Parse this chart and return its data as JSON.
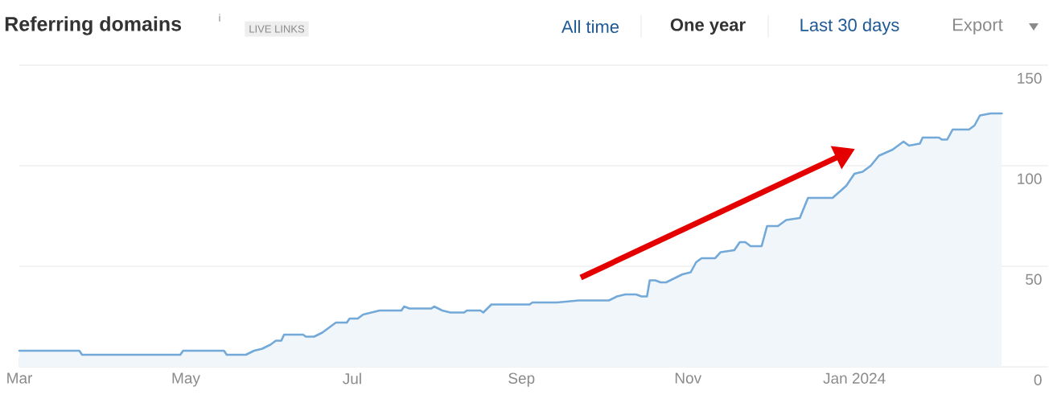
{
  "chart_data": {
    "type": "area",
    "title": "Referring domains",
    "annotations": [
      "i",
      "LIVE LINKS",
      "All time",
      "One year",
      "Last 30 days",
      "Export"
    ],
    "x": [
      "2023-03-01",
      "2023-03-23",
      "2023-03-24",
      "2023-04-29",
      "2023-04-30",
      "2023-05-15",
      "2023-05-16",
      "2023-05-23",
      "2023-05-26",
      "2023-05-29",
      "2023-06-01",
      "2023-06-03",
      "2023-06-05",
      "2023-06-06",
      "2023-06-13",
      "2023-06-14",
      "2023-06-17",
      "2023-06-20",
      "2023-06-22",
      "2023-06-25",
      "2023-06-29",
      "2023-06-30",
      "2023-07-03",
      "2023-07-05",
      "2023-07-11",
      "2023-07-19",
      "2023-07-20",
      "2023-07-22",
      "2023-07-30",
      "2023-07-31",
      "2023-08-03",
      "2023-08-06",
      "2023-08-11",
      "2023-08-12",
      "2023-08-17",
      "2023-08-18",
      "2023-08-21",
      "2023-09-04",
      "2023-09-05",
      "2023-09-14",
      "2023-09-22",
      "2023-10-03",
      "2023-10-06",
      "2023-10-09",
      "2023-10-13",
      "2023-10-15",
      "2023-10-17",
      "2023-10-18",
      "2023-10-20",
      "2023-10-22",
      "2023-10-24",
      "2023-10-30",
      "2023-11-02",
      "2023-11-04",
      "2023-11-06",
      "2023-11-11",
      "2023-11-13",
      "2023-11-18",
      "2023-11-20",
      "2023-11-22",
      "2023-11-24",
      "2023-11-28",
      "2023-11-30",
      "2023-12-04",
      "2023-12-07",
      "2023-12-12",
      "2023-12-15",
      "2023-12-24",
      "2023-12-29",
      "2024-01-01",
      "2024-01-04",
      "2024-01-07",
      "2024-01-10",
      "2024-01-15",
      "2024-01-19",
      "2024-01-21",
      "2024-01-25",
      "2024-01-26",
      "2024-02-01",
      "2024-02-02",
      "2024-02-04",
      "2024-02-06",
      "2024-02-12",
      "2024-02-14",
      "2024-02-16",
      "2024-02-20",
      "2024-02-24"
    ],
    "values": [
      8,
      8,
      6,
      6,
      8,
      8,
      6,
      6,
      8,
      9,
      11,
      13,
      13,
      16,
      16,
      15,
      15,
      17,
      19,
      22,
      22,
      24,
      24,
      26,
      28,
      28,
      30,
      29,
      29,
      30,
      28,
      27,
      27,
      28,
      28,
      27,
      31,
      31,
      32,
      32,
      33,
      33,
      35,
      36,
      36,
      35,
      35,
      43,
      43,
      42,
      42,
      46,
      47,
      52,
      54,
      54,
      57,
      58,
      62,
      62,
      60,
      60,
      70,
      70,
      73,
      74,
      84,
      84,
      90,
      96,
      97,
      100,
      105,
      108,
      112,
      110,
      111,
      114,
      114,
      113,
      113,
      118,
      118,
      120,
      125,
      126,
      126
    ],
    "color": "#72a9d8",
    "xlim": [
      "2023-03-01",
      "2024-03-12"
    ],
    "xticks": [
      {
        "value": "2023-03-01",
        "label": "Mar"
      },
      {
        "value": "2023-05-01",
        "label": "May"
      },
      {
        "value": "2023-07-01",
        "label": "Jul"
      },
      {
        "value": "2023-09-01",
        "label": "Sep"
      },
      {
        "value": "2023-11-01",
        "label": "Nov"
      },
      {
        "value": "2024-01-01",
        "label": "Jan 2024"
      }
    ],
    "ylim": [
      0,
      150
    ],
    "yticks": [
      0,
      50,
      100,
      150
    ],
    "grid": "y"
  }
}
